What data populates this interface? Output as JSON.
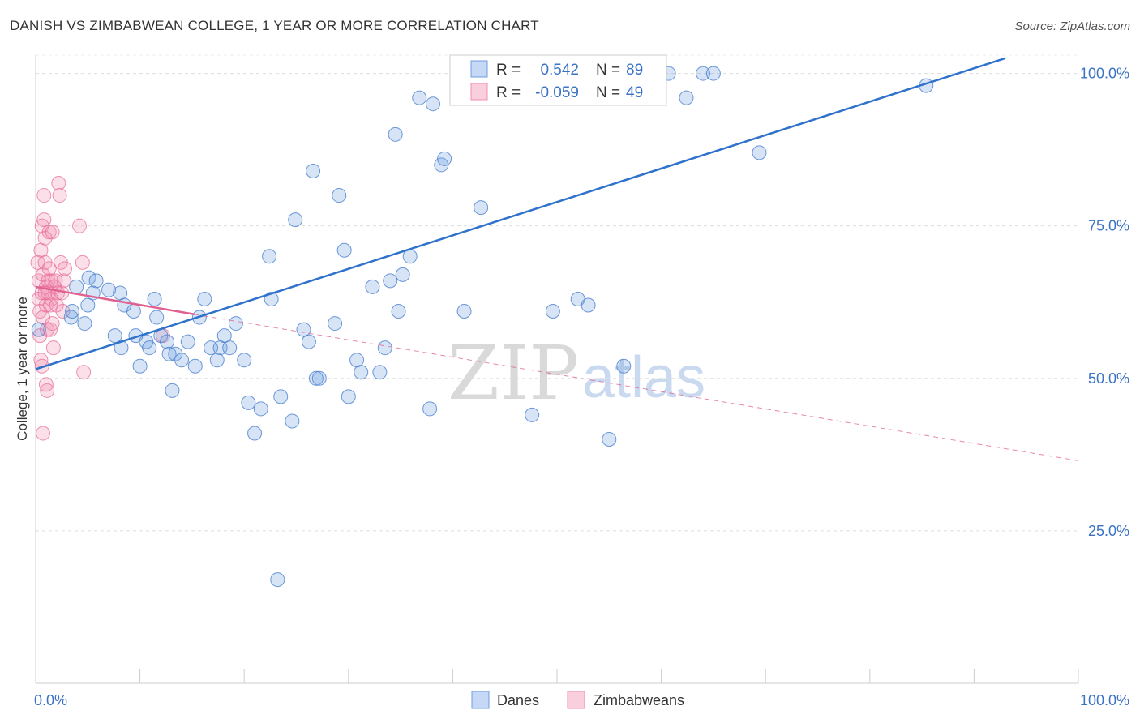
{
  "title": "DANISH VS ZIMBABWEAN COLLEGE, 1 YEAR OR MORE CORRELATION CHART",
  "source": "Source: ZipAtlas.com",
  "colors": {
    "danes": "#6d9de0",
    "danes_line": "#2f72cc",
    "zimbabweans": "#f28db0",
    "zimbabweans_line": "#e0608f",
    "tick_text": "#3a72c4"
  },
  "watermark": {
    "zip": "ZIP",
    "atlas": "atlas"
  },
  "legend": {
    "r_label": "R =",
    "n_label": "N =",
    "danes": {
      "r": "0.542",
      "n": "89"
    },
    "zimbabweans": {
      "r": "-0.059",
      "n": "49"
    }
  },
  "bottom_legend": [
    "Danes",
    "Zimbabweans"
  ],
  "chart_data": {
    "type": "scatter",
    "title": "DANISH VS ZIMBABWEAN COLLEGE, 1 YEAR OR MORE CORRELATION CHART",
    "xlabel": "",
    "ylabel": "College, 1 year or more",
    "xlim": [
      0,
      100
    ],
    "ylim": [
      0,
      103
    ],
    "x_tick_labels": [
      "0.0%",
      "100.0%"
    ],
    "y_ticks": [
      25,
      50,
      75,
      100
    ],
    "y_tick_labels": [
      "25.0%",
      "50.0%",
      "75.0%",
      "100.0%"
    ],
    "grid": true,
    "series": [
      {
        "name": "Danes",
        "r": 0.542,
        "n": 89,
        "trend": {
          "x": [
            0,
            93
          ],
          "y": [
            51.5,
            102.5
          ]
        },
        "points": [
          [
            0.3,
            58
          ],
          [
            3.4,
            60
          ],
          [
            3.5,
            61
          ],
          [
            3.9,
            65
          ],
          [
            5,
            62
          ],
          [
            5.1,
            66.5
          ],
          [
            4.7,
            59
          ],
          [
            5.8,
            66
          ],
          [
            5.5,
            64
          ],
          [
            7,
            64.5
          ],
          [
            7.6,
            57
          ],
          [
            8.2,
            55
          ],
          [
            8.1,
            64
          ],
          [
            8.5,
            62
          ],
          [
            9.4,
            61
          ],
          [
            9.6,
            57
          ],
          [
            10,
            52
          ],
          [
            10.6,
            56
          ],
          [
            10.9,
            55
          ],
          [
            11.4,
            63
          ],
          [
            11.6,
            60
          ],
          [
            12,
            57
          ],
          [
            12.6,
            56
          ],
          [
            12.8,
            54
          ],
          [
            13.1,
            48
          ],
          [
            13.4,
            54
          ],
          [
            14,
            53
          ],
          [
            14.6,
            56
          ],
          [
            15.3,
            52
          ],
          [
            15.7,
            60
          ],
          [
            16.2,
            63
          ],
          [
            16.8,
            55
          ],
          [
            17.4,
            53
          ],
          [
            17.7,
            55
          ],
          [
            18.1,
            57
          ],
          [
            18.6,
            55
          ],
          [
            19.2,
            59
          ],
          [
            20,
            53
          ],
          [
            20.4,
            46
          ],
          [
            21,
            41
          ],
          [
            21.6,
            45
          ],
          [
            22.4,
            70
          ],
          [
            22.6,
            63
          ],
          [
            23.2,
            17
          ],
          [
            23.5,
            47
          ],
          [
            24.6,
            43
          ],
          [
            24.9,
            76
          ],
          [
            25.7,
            58
          ],
          [
            26.2,
            56
          ],
          [
            26.6,
            84
          ],
          [
            26.9,
            50
          ],
          [
            27.2,
            50
          ],
          [
            28.7,
            59
          ],
          [
            29.1,
            80
          ],
          [
            29.6,
            71
          ],
          [
            30,
            47
          ],
          [
            30.8,
            53
          ],
          [
            31.2,
            51
          ],
          [
            32.3,
            65
          ],
          [
            33,
            51
          ],
          [
            33.5,
            55
          ],
          [
            34,
            66
          ],
          [
            34.5,
            90
          ],
          [
            34.8,
            61
          ],
          [
            35.2,
            67
          ],
          [
            35.9,
            70
          ],
          [
            36.8,
            96
          ],
          [
            37.8,
            45
          ],
          [
            38.1,
            95
          ],
          [
            38.9,
            85
          ],
          [
            39.2,
            86
          ],
          [
            41.1,
            61
          ],
          [
            41.4,
            99
          ],
          [
            41.9,
            100
          ],
          [
            42.7,
            78
          ],
          [
            47.6,
            44
          ],
          [
            49.6,
            61
          ],
          [
            52,
            63
          ],
          [
            53,
            62
          ],
          [
            53.5,
            100
          ],
          [
            57,
            96
          ],
          [
            60.7,
            100
          ],
          [
            62.4,
            96
          ],
          [
            64,
            100
          ],
          [
            65,
            100
          ],
          [
            69.4,
            87
          ],
          [
            85.4,
            98
          ],
          [
            56.4,
            52
          ],
          [
            55,
            40
          ]
        ]
      },
      {
        "name": "Zimbabweans",
        "r": -0.059,
        "n": 49,
        "trend_solid": {
          "x": [
            0,
            15.2
          ],
          "y": [
            65,
            60.5
          ]
        },
        "trend_dashed": {
          "x": [
            15.2,
            100
          ],
          "y": [
            60.5,
            36.5
          ]
        },
        "points": [
          [
            0.2,
            69
          ],
          [
            0.3,
            66
          ],
          [
            0.3,
            63
          ],
          [
            0.4,
            61
          ],
          [
            0.4,
            57
          ],
          [
            0.5,
            53
          ],
          [
            0.5,
            71
          ],
          [
            0.6,
            75
          ],
          [
            0.6,
            64
          ],
          [
            0.7,
            67
          ],
          [
            0.7,
            60
          ],
          [
            0.8,
            80
          ],
          [
            0.8,
            76
          ],
          [
            0.9,
            73
          ],
          [
            0.9,
            69
          ],
          [
            1,
            65
          ],
          [
            1,
            62
          ],
          [
            1.1,
            58
          ],
          [
            1.1,
            48
          ],
          [
            1.2,
            66
          ],
          [
            1.2,
            64
          ],
          [
            1.3,
            74
          ],
          [
            1.3,
            68
          ],
          [
            1.4,
            62
          ],
          [
            1.4,
            58
          ],
          [
            1.5,
            66
          ],
          [
            1.5,
            63
          ],
          [
            1.6,
            74
          ],
          [
            1.6,
            59
          ],
          [
            1.7,
            55
          ],
          [
            1.8,
            65
          ],
          [
            1.9,
            66
          ],
          [
            2,
            62
          ],
          [
            2.1,
            64
          ],
          [
            2.2,
            82
          ],
          [
            2.3,
            80
          ],
          [
            2.4,
            69
          ],
          [
            2.5,
            64
          ],
          [
            2.6,
            61
          ],
          [
            2.7,
            66
          ],
          [
            2.8,
            68
          ],
          [
            0.7,
            41
          ],
          [
            1,
            49
          ],
          [
            0.6,
            52
          ],
          [
            4.2,
            75
          ],
          [
            4.5,
            69
          ],
          [
            4.6,
            51
          ],
          [
            12.2,
            57
          ],
          [
            0.9,
            64
          ]
        ]
      }
    ]
  }
}
